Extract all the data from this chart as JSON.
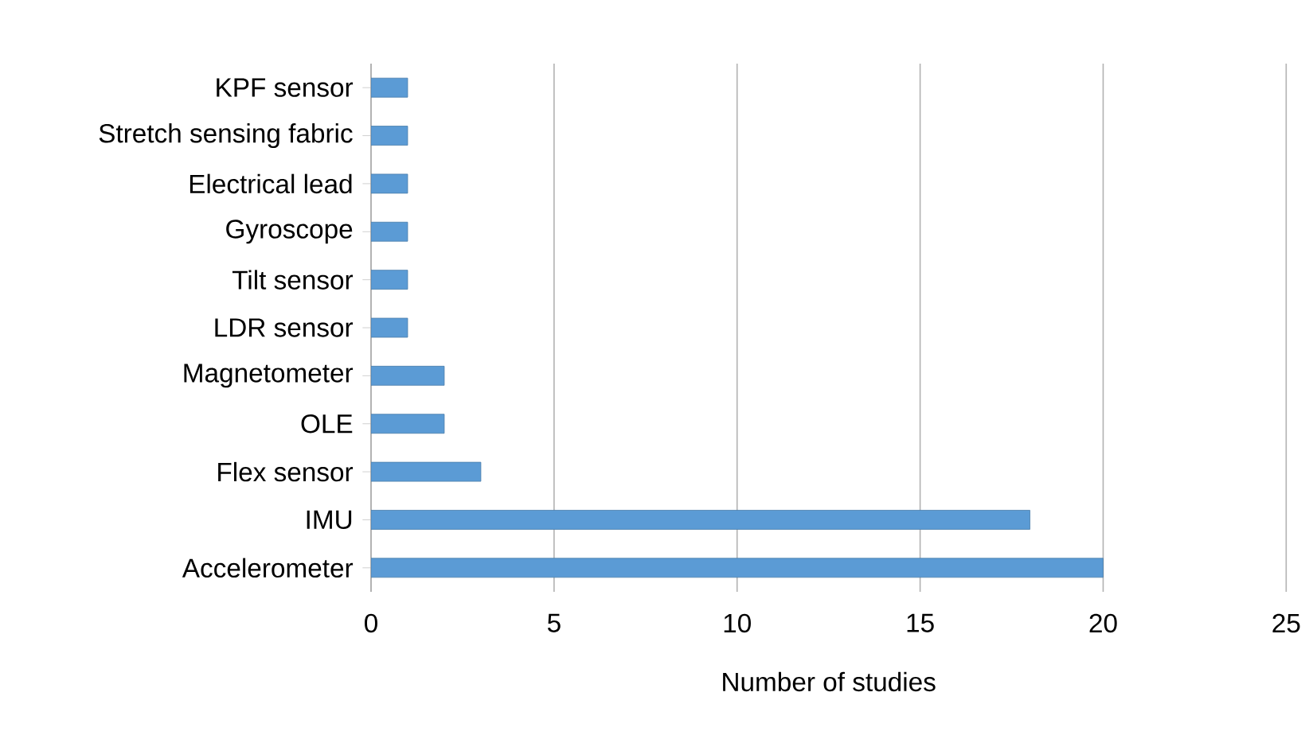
{
  "chart_data": {
    "type": "bar",
    "orientation": "horizontal",
    "xlabel": "Number of studies",
    "categories": [
      "KPF sensor",
      "Stretch sensing fabric",
      "Electrical lead",
      "Gyroscope",
      "Tilt sensor",
      "LDR sensor",
      "Magnetometer",
      "OLE",
      "Flex sensor",
      "IMU",
      "Accelerometer"
    ],
    "values": [
      1,
      1,
      1,
      1,
      1,
      1,
      2,
      2,
      3,
      18,
      20
    ],
    "color": "#5b9bd5",
    "xlim": [
      0,
      25
    ],
    "xticks": [
      0,
      5,
      10,
      15,
      20,
      25
    ],
    "grid": "x"
  }
}
